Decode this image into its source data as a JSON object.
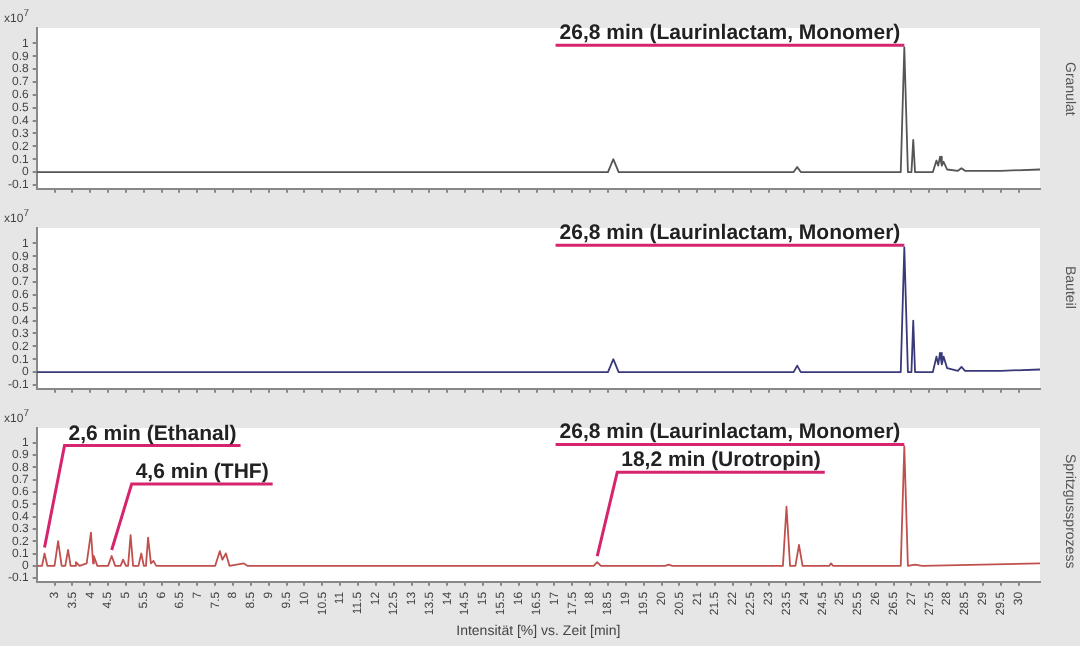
{
  "chart_data": [
    {
      "type": "line",
      "ylabel": "Granulat",
      "tick_labels": "y",
      "xlim": [
        2.5,
        30.6
      ],
      "xticks": [
        3,
        3.5,
        4,
        4.5,
        5,
        5.5,
        6,
        6.5,
        7,
        7.5,
        8,
        8.5,
        9,
        9.5,
        10,
        10.5,
        11,
        11.5,
        12,
        12.5,
        13,
        13.5,
        14,
        14.5,
        15,
        15.5,
        16,
        16.5,
        17,
        17.5,
        18,
        18.5,
        19,
        19.5,
        20,
        20.5,
        21,
        21.5,
        22,
        22.5,
        23,
        23.5,
        24,
        24.5,
        25,
        25.5,
        26,
        26.5,
        27,
        27.5,
        28,
        28.5,
        29,
        29.5,
        30
      ],
      "ylim": [
        -0.13,
        1.12
      ],
      "yticks": [
        -0.1,
        0,
        0.1,
        0.2,
        0.3,
        0.4,
        0.5,
        0.6,
        0.7,
        0.8,
        0.9,
        1
      ],
      "annotations": [
        "x10$^{7}$",
        {
          "text": "26,8 min (Laurinlactam, Monomer)",
          "x": 26.8,
          "y": 0.97
        }
      ],
      "series": [
        {
          "color": "#555555",
          "x": [
            2.5,
            18.5,
            18.65,
            18.8,
            23.7,
            23.8,
            23.9,
            26.7,
            26.8,
            26.9,
            27.0,
            27.05,
            27.1,
            27.6,
            27.7,
            27.75,
            27.8,
            27.85,
            27.9,
            28.0,
            28.3,
            28.4,
            28.5,
            29.5,
            30.6
          ],
          "values": [
            0,
            0,
            0.1,
            0,
            0,
            0.04,
            0,
            0,
            0.97,
            0,
            0,
            0.25,
            0,
            0,
            0.09,
            0.05,
            0.12,
            0.05,
            0.08,
            0.02,
            0.01,
            0.03,
            0.01,
            0.01,
            0.02
          ]
        }
      ]
    },
    {
      "type": "line",
      "ylabel": "Bauteil",
      "tick_labels": "y",
      "xlim": [
        2.5,
        30.6
      ],
      "xticks": [
        3,
        3.5,
        4,
        4.5,
        5,
        5.5,
        6,
        6.5,
        7,
        7.5,
        8,
        8.5,
        9,
        9.5,
        10,
        10.5,
        11,
        11.5,
        12,
        12.5,
        13,
        13.5,
        14,
        14.5,
        15,
        15.5,
        16,
        16.5,
        17,
        17.5,
        18,
        18.5,
        19,
        19.5,
        20,
        20.5,
        21,
        21.5,
        22,
        22.5,
        23,
        23.5,
        24,
        24.5,
        25,
        25.5,
        26,
        26.5,
        27,
        27.5,
        28,
        28.5,
        29,
        29.5,
        30
      ],
      "ylim": [
        -0.13,
        1.12
      ],
      "yticks": [
        -0.1,
        0,
        0.1,
        0.2,
        0.3,
        0.4,
        0.5,
        0.6,
        0.7,
        0.8,
        0.9,
        1
      ],
      "annotations": [
        "x10$^{7}$",
        {
          "text": "26,8 min (Laurinlactam, Monomer)",
          "x": 26.8,
          "y": 0.97
        }
      ],
      "series": [
        {
          "color": "#3a3a7a",
          "x": [
            2.5,
            18.5,
            18.65,
            18.8,
            23.7,
            23.8,
            23.9,
            26.7,
            26.8,
            26.9,
            27.0,
            27.05,
            27.1,
            27.6,
            27.7,
            27.75,
            27.8,
            27.85,
            27.9,
            28.0,
            28.3,
            28.4,
            28.5,
            29.5,
            30.6
          ],
          "values": [
            0,
            0,
            0.1,
            0,
            0,
            0.05,
            0,
            0,
            0.97,
            0,
            0,
            0.4,
            0,
            0,
            0.12,
            0.06,
            0.15,
            0.06,
            0.12,
            0.03,
            0.01,
            0.04,
            0.01,
            0.01,
            0.02
          ]
        }
      ]
    },
    {
      "type": "line",
      "ylabel": "Spritzgussprozess",
      "xlabel": "Intensität [%] vs. Zeit [min]",
      "xlim": [
        2.5,
        30.6
      ],
      "xticks": [
        3,
        3.5,
        4,
        4.5,
        5,
        5.5,
        6,
        6.5,
        7,
        7.5,
        8,
        8.5,
        9,
        9.5,
        10,
        10.5,
        11,
        11.5,
        12,
        12.5,
        13,
        13.5,
        14,
        14.5,
        15,
        15.5,
        16,
        16.5,
        17,
        17.5,
        18,
        18.5,
        19,
        19.5,
        20,
        20.5,
        21,
        21.5,
        22,
        22.5,
        23,
        23.5,
        24,
        24.5,
        25,
        25.5,
        26,
        26.5,
        27,
        27.5,
        28,
        28.5,
        29,
        29.5,
        30
      ],
      "ylim": [
        -0.13,
        1.12
      ],
      "yticks": [
        -0.1,
        0,
        0.1,
        0.2,
        0.3,
        0.4,
        0.5,
        0.6,
        0.7,
        0.8,
        0.9,
        1
      ],
      "annotations": [
        "x10$^{7}$",
        {
          "text": "2,6 min (Ethanal)",
          "x": 2.72,
          "y": 0.1
        },
        {
          "text": "4,6 min (THF)",
          "x": 4.6,
          "y": 0.08
        },
        {
          "text": "18,2 min (Urotropin)",
          "x": 18.2,
          "y": 0.03
        },
        {
          "text": "26,8 min (Laurinlactam, Monomer)",
          "x": 26.8,
          "y": 0.97
        }
      ],
      "series": [
        {
          "color": "#c0504d",
          "x": [
            2.5,
            2.65,
            2.72,
            2.8,
            3.0,
            3.1,
            3.2,
            3.3,
            3.38,
            3.45,
            3.55,
            3.6,
            3.7,
            3.9,
            4.02,
            4.08,
            4.1,
            4.2,
            4.5,
            4.6,
            4.7,
            4.85,
            4.92,
            5.0,
            5.06,
            5.13,
            5.2,
            5.35,
            5.43,
            5.5,
            5.56,
            5.62,
            5.7,
            5.77,
            5.85,
            7.5,
            7.63,
            7.7,
            7.8,
            7.9,
            8.3,
            8.4,
            18.1,
            18.2,
            18.3,
            20.1,
            20.2,
            20.3,
            23.4,
            23.5,
            23.6,
            23.75,
            23.85,
            23.95,
            24.7,
            24.75,
            24.8,
            26.7,
            26.8,
            26.9,
            27.1,
            27.3,
            30.6
          ],
          "values": [
            0,
            0,
            0.1,
            0,
            0,
            0.2,
            0,
            0,
            0.13,
            0,
            0,
            0.03,
            0,
            0.02,
            0.27,
            0.02,
            0.08,
            0,
            0,
            0.08,
            0,
            0,
            0.05,
            0,
            0,
            0.25,
            0,
            0,
            0.1,
            0,
            0,
            0.23,
            0.02,
            0.04,
            0,
            0,
            0.12,
            0.05,
            0.1,
            0,
            0.02,
            0,
            0,
            0.03,
            0,
            0,
            0.01,
            0,
            0,
            0.48,
            0,
            0,
            0.17,
            0,
            0,
            0.02,
            0,
            0,
            0.97,
            0,
            0.01,
            0,
            0.02
          ]
        }
      ]
    }
  ]
}
